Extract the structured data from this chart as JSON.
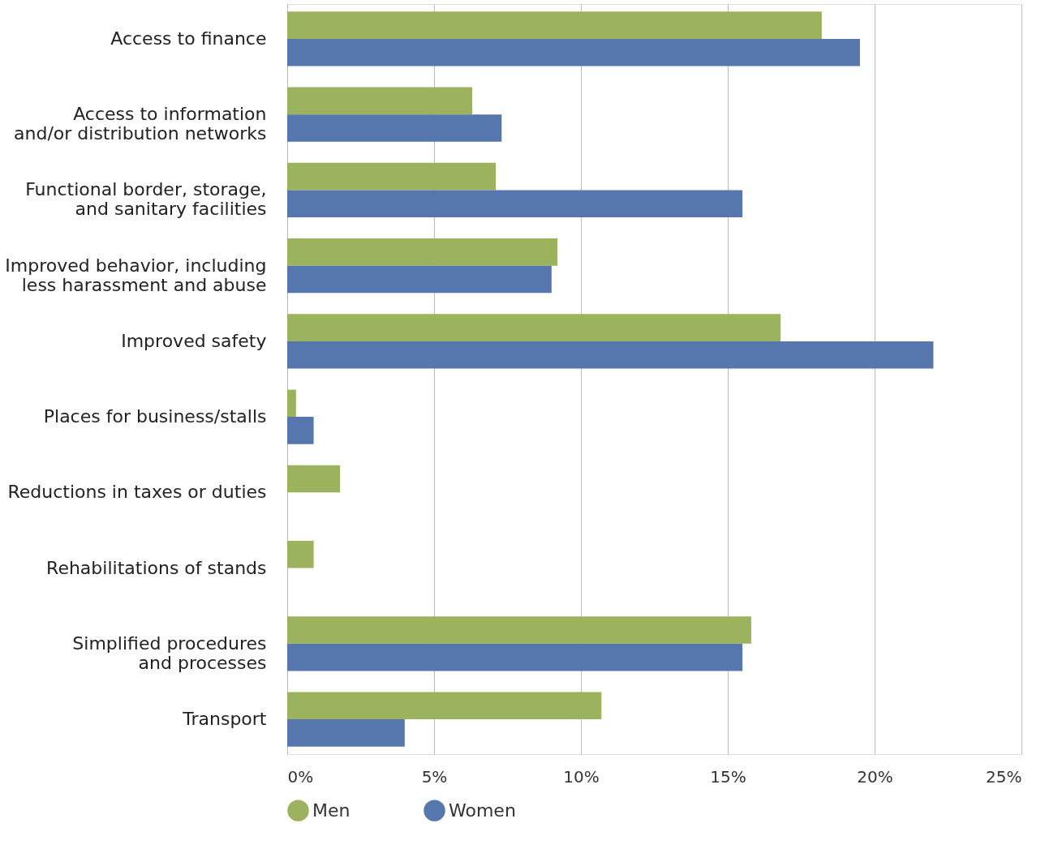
{
  "chart_data": {
    "type": "bar",
    "orientation": "horizontal",
    "categories": [
      "Access to finance",
      "Access to information\nand/or distribution networks",
      "Functional border, storage,\nand sanitary facilities",
      "Improved behavior, including\nless harassment  and abuse",
      "Improved safety",
      "Places for business/stalls",
      "Reductions in taxes or duties",
      "Rehabilitations of stands",
      "Simplified procedures\nand processes",
      "Transport"
    ],
    "series": [
      {
        "name": "Men",
        "color": "#9bb35c",
        "values": [
          18.2,
          6.3,
          7.1,
          9.2,
          16.8,
          0.3,
          1.8,
          0.9,
          15.8,
          10.7
        ]
      },
      {
        "name": "Women",
        "color": "#5577ad",
        "values": [
          19.5,
          7.3,
          15.5,
          9.0,
          22.0,
          0.9,
          null,
          null,
          15.5,
          4.0
        ]
      }
    ],
    "xlim": [
      0,
      25
    ],
    "xticks": [
      {
        "value": 0,
        "label": "0%"
      },
      {
        "value": 5,
        "label": "5%"
      },
      {
        "value": 10,
        "label": "10%"
      },
      {
        "value": 15,
        "label": "15%"
      },
      {
        "value": 20,
        "label": "20%"
      },
      {
        "value": 25,
        "label": "25%"
      }
    ],
    "grid": "x",
    "legend": "bottom"
  }
}
